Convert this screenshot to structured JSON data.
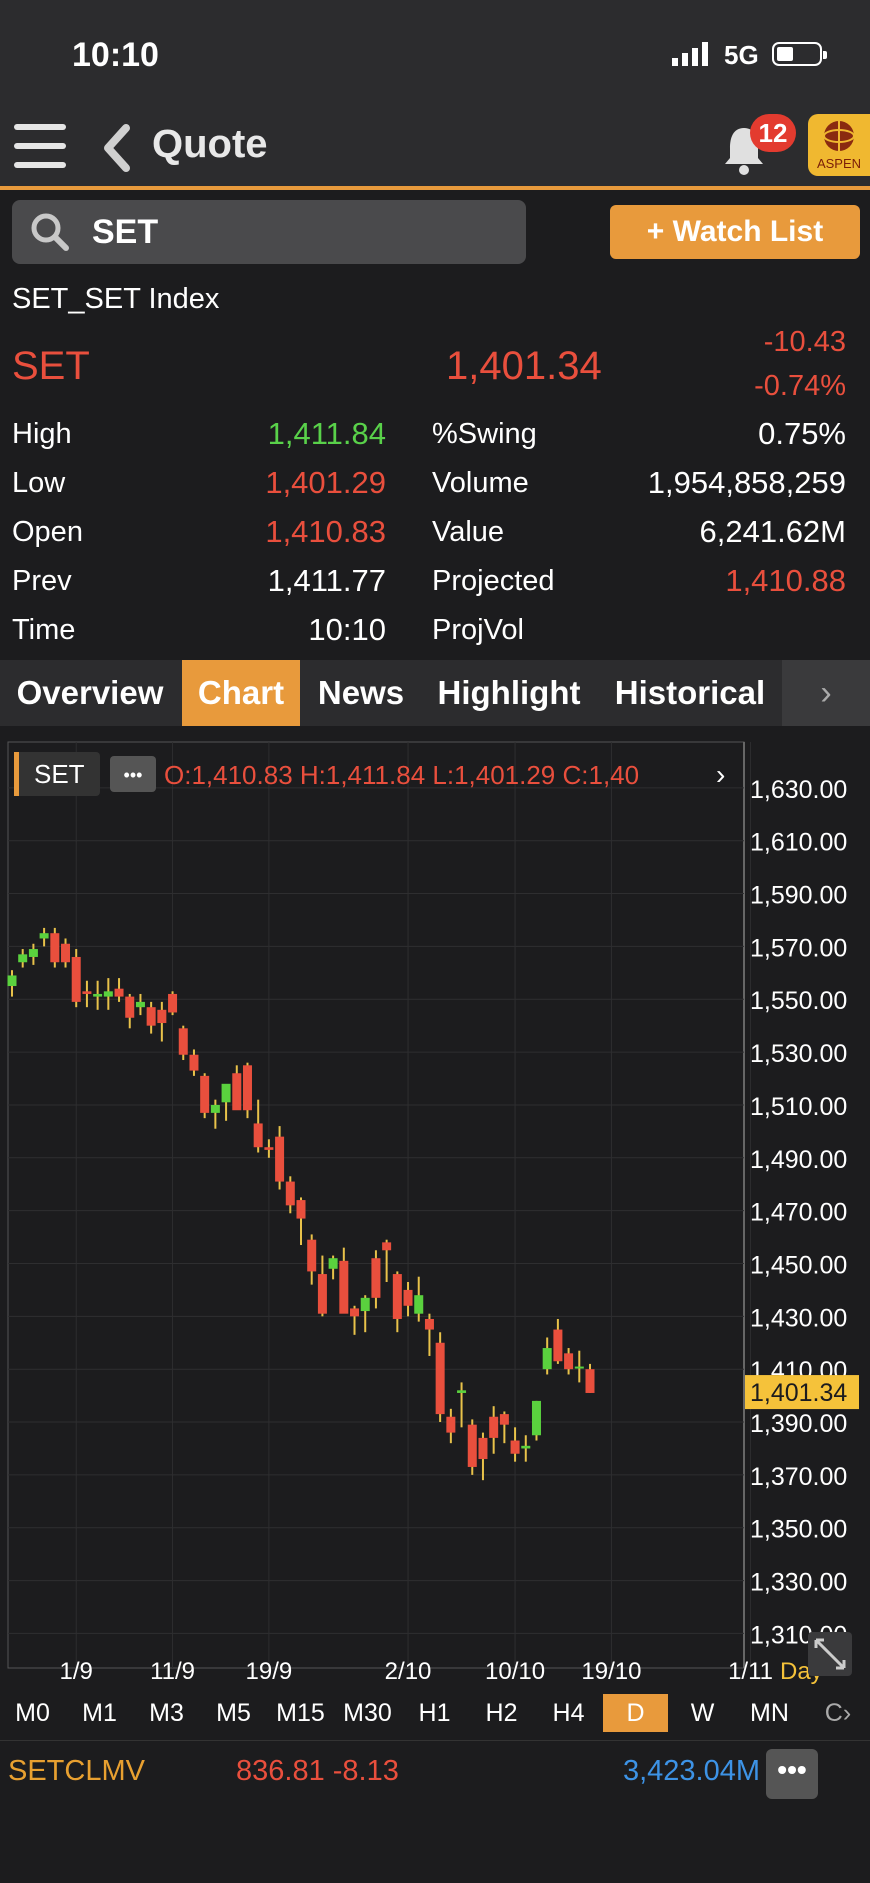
{
  "status": {
    "time": "10:10",
    "network": "5G"
  },
  "nav": {
    "title": "Quote",
    "badge": "12",
    "logo_text": "ASPEN"
  },
  "search": {
    "value": "SET"
  },
  "watch_button": "+ Watch List",
  "quote": {
    "full_name": "SET_SET Index",
    "symbol": "SET",
    "last": "1,401.34",
    "change": "-10.43",
    "change_pct": "-0.74%",
    "left_stats": [
      {
        "label": "High",
        "value": "1,411.84",
        "color": "#59d14a"
      },
      {
        "label": "Low",
        "value": "1,401.29",
        "color": "#e94f3d"
      },
      {
        "label": "Open",
        "value": "1,410.83",
        "color": "#e94f3d"
      },
      {
        "label": "Prev",
        "value": "1,411.77",
        "color": "#ffffff"
      },
      {
        "label": "Time",
        "value": "10:10",
        "color": "#ffffff"
      }
    ],
    "right_stats": [
      {
        "label": "%Swing",
        "value": "0.75%",
        "color": "#ffffff"
      },
      {
        "label": "Volume",
        "value": "1,954,858,259",
        "color": "#ffffff"
      },
      {
        "label": "Value",
        "value": "6,241.62M",
        "color": "#ffffff"
      },
      {
        "label": "Projected",
        "value": "1,410.88",
        "color": "#e94f3d"
      },
      {
        "label": "ProjVol",
        "value": "",
        "color": "#ffffff"
      }
    ]
  },
  "tabs": [
    "Overview",
    "Chart",
    "News",
    "Highlight",
    "Historical"
  ],
  "active_tab": "Chart",
  "chart_header": {
    "symbol": "SET",
    "more": "•••",
    "ohlc": "O:1,410.83  H:1,411.84  L:1,401.29  C:1,40"
  },
  "chart_data": {
    "type": "candlestick",
    "ylim": [
      1300,
      1640
    ],
    "y_ticks": [
      "1,630.00",
      "1,610.00",
      "1,590.00",
      "1,570.00",
      "1,550.00",
      "1,530.00",
      "1,510.00",
      "1,490.00",
      "1,470.00",
      "1,450.00",
      "1,430.00",
      "1,410.00",
      "1,390.00",
      "1,370.00",
      "1,350.00",
      "1,330.00",
      "1,310.00"
    ],
    "y_tick_values": [
      1630,
      1610,
      1590,
      1570,
      1550,
      1530,
      1510,
      1490,
      1470,
      1450,
      1430,
      1410,
      1390,
      1370,
      1350,
      1330,
      1310
    ],
    "x_ticks": [
      "1/9",
      "11/9",
      "19/9",
      "2/10",
      "10/10",
      "19/10",
      "1/11"
    ],
    "x_tick_index": [
      6,
      15,
      24,
      37,
      47,
      56,
      69
    ],
    "last_price_label": "1,401.34",
    "last_price": 1401.34,
    "period_label": "Day",
    "candles": [
      [
        1555,
        1561,
        1551,
        1559
      ],
      [
        1564,
        1569,
        1562,
        1567
      ],
      [
        1566,
        1571,
        1563,
        1569
      ],
      [
        1573,
        1577,
        1570,
        1575
      ],
      [
        1575,
        1577,
        1562,
        1564
      ],
      [
        1571,
        1573,
        1562,
        1564
      ],
      [
        1566,
        1569,
        1547,
        1549
      ],
      [
        1553,
        1557,
        1547,
        1552
      ],
      [
        1551,
        1557,
        1546,
        1552
      ],
      [
        1551,
        1558,
        1546,
        1553
      ],
      [
        1554,
        1558,
        1549,
        1551
      ],
      [
        1551,
        1552,
        1539,
        1543
      ],
      [
        1547,
        1552,
        1544,
        1549
      ],
      [
        1547,
        1549,
        1537,
        1540
      ],
      [
        1546,
        1549,
        1534,
        1541
      ],
      [
        1552,
        1553,
        1544,
        1545
      ],
      [
        1539,
        1540,
        1527,
        1529
      ],
      [
        1529,
        1531,
        1521,
        1523
      ],
      [
        1521,
        1522,
        1505,
        1507
      ],
      [
        1507,
        1512,
        1501,
        1510
      ],
      [
        1511,
        1517,
        1504,
        1518
      ],
      [
        1522,
        1525,
        1511,
        1508
      ],
      [
        1525,
        1526,
        1505,
        1508
      ],
      [
        1503,
        1512,
        1492,
        1494
      ],
      [
        1494,
        1497,
        1490,
        1493
      ],
      [
        1498,
        1502,
        1478,
        1481
      ],
      [
        1481,
        1483,
        1469,
        1472
      ],
      [
        1474,
        1475,
        1457,
        1467
      ],
      [
        1459,
        1461,
        1442,
        1447
      ],
      [
        1446,
        1453,
        1430,
        1431
      ],
      [
        1448,
        1453,
        1444,
        1452
      ],
      [
        1451,
        1456,
        1432,
        1431
      ],
      [
        1433,
        1434,
        1423,
        1430
      ],
      [
        1432,
        1438,
        1424,
        1437
      ],
      [
        1452,
        1455,
        1433,
        1437
      ],
      [
        1458,
        1459,
        1443,
        1455
      ],
      [
        1446,
        1447,
        1424,
        1429
      ],
      [
        1440,
        1443,
        1430,
        1434
      ],
      [
        1431,
        1445,
        1428,
        1438
      ],
      [
        1429,
        1431,
        1415,
        1425
      ],
      [
        1420,
        1424,
        1390,
        1393
      ],
      [
        1392,
        1395,
        1382,
        1386
      ],
      [
        1401,
        1405,
        1388,
        1402
      ],
      [
        1389,
        1391,
        1370,
        1373
      ],
      [
        1384,
        1386,
        1368,
        1376
      ],
      [
        1392,
        1396,
        1378,
        1384
      ],
      [
        1393,
        1394,
        1382,
        1389
      ],
      [
        1383,
        1388,
        1375,
        1378
      ],
      [
        1380,
        1385,
        1375,
        1381
      ],
      [
        1385,
        1398,
        1383,
        1398
      ],
      [
        1410,
        1422,
        1408,
        1418
      ],
      [
        1425,
        1429,
        1412,
        1413
      ],
      [
        1416,
        1418,
        1408,
        1410
      ],
      [
        1411,
        1417,
        1405,
        1411
      ],
      [
        1410,
        1412,
        1401,
        1401
      ]
    ]
  },
  "timeframes": [
    "M0",
    "M1",
    "M3",
    "M5",
    "M15",
    "M30",
    "H1",
    "H2",
    "H4",
    "D",
    "W",
    "MN"
  ],
  "active_timeframe": "D",
  "bottom": {
    "symbol": "SETCLMV",
    "price_change": "836.81 -8.13",
    "value": "3,423.04M",
    "more": "•••"
  }
}
